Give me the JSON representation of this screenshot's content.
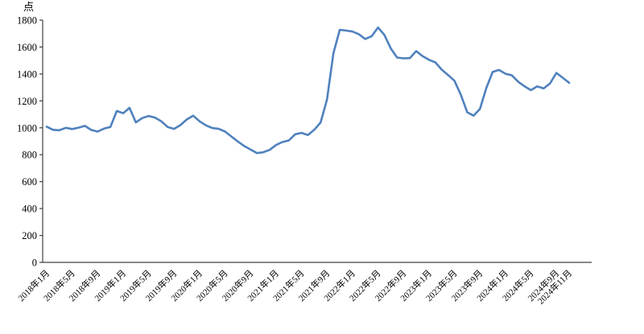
{
  "chart": {
    "unit_label": "点"
  },
  "chart_data": {
    "type": "line",
    "title": "",
    "ylabel_unit": "点",
    "frequency": "monthly",
    "x_range": [
      "2018年1月",
      "2024年11月"
    ],
    "values": [
      1008,
      985,
      982,
      1000,
      991,
      1001,
      1014,
      984,
      972,
      994,
      1006,
      1125,
      1108,
      1148,
      1040,
      1072,
      1088,
      1076,
      1048,
      1005,
      992,
      1020,
      1062,
      1090,
      1048,
      1018,
      998,
      992,
      972,
      935,
      898,
      865,
      838,
      812,
      818,
      836,
      872,
      894,
      906,
      952,
      962,
      946,
      985,
      1040,
      1210,
      1555,
      1728,
      1722,
      1715,
      1695,
      1660,
      1680,
      1745,
      1690,
      1590,
      1522,
      1516,
      1518,
      1570,
      1532,
      1505,
      1486,
      1432,
      1392,
      1350,
      1245,
      1115,
      1090,
      1140,
      1295,
      1415,
      1430,
      1402,
      1390,
      1342,
      1308,
      1280,
      1308,
      1292,
      1330,
      1408,
      1372,
      1334
    ],
    "x_tick_labels": [
      {
        "label": "2018年1月",
        "index": 0
      },
      {
        "label": "2018年5月",
        "index": 4
      },
      {
        "label": "2018年9月",
        "index": 8
      },
      {
        "label": "2019年1月",
        "index": 12
      },
      {
        "label": "2019年5月",
        "index": 16
      },
      {
        "label": "2019年9月",
        "index": 20
      },
      {
        "label": "2020年1月",
        "index": 24
      },
      {
        "label": "2020年5月",
        "index": 28
      },
      {
        "label": "2020年9月",
        "index": 32
      },
      {
        "label": "2021年1月",
        "index": 36
      },
      {
        "label": "2021年5月",
        "index": 40
      },
      {
        "label": "2021年9月",
        "index": 44
      },
      {
        "label": "2022年1月",
        "index": 48
      },
      {
        "label": "2022年5月",
        "index": 52
      },
      {
        "label": "2022年9月",
        "index": 56
      },
      {
        "label": "2023年1月",
        "index": 60
      },
      {
        "label": "2023年5月",
        "index": 64
      },
      {
        "label": "2023年9月",
        "index": 68
      },
      {
        "label": "2024年1月",
        "index": 72
      },
      {
        "label": "2024年5月",
        "index": 76
      },
      {
        "label": "2024年9月",
        "index": 80
      },
      {
        "label": "2024年11月",
        "index": 82
      }
    ],
    "y_ticks": [
      0,
      200,
      400,
      600,
      800,
      1000,
      1200,
      1400,
      1600,
      1800
    ],
    "ylim": [
      0,
      1800
    ],
    "grid": false,
    "legend_position": "none",
    "line_color": "#4f81bd",
    "axis_color": "#404040"
  }
}
